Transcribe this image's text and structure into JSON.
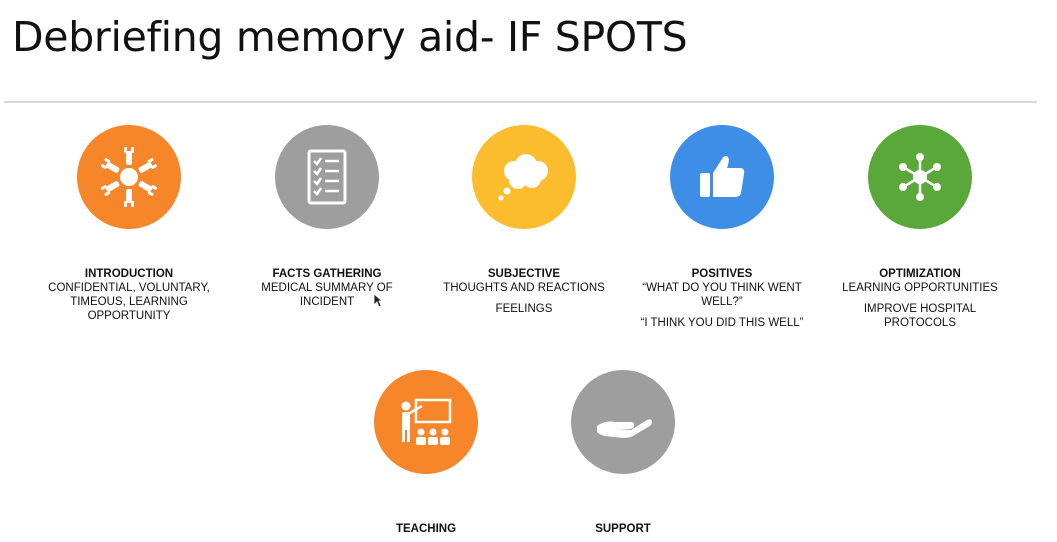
{
  "slide": {
    "title": "Debriefing memory aid- IF SPOTS"
  },
  "items": [
    {
      "heading": "INTRODUCTION",
      "lines": [
        "CONFIDENTIAL, VOLUNTARY,",
        "TIMEOUS, LEARNING",
        "OPPORTUNITY"
      ],
      "color": "#f68629",
      "icon": "hands-together-icon"
    },
    {
      "heading": "FACTS GATHERING",
      "lines": [
        "MEDICAL SUMMARY OF",
        "INCIDENT"
      ],
      "color": "#9e9e9e",
      "icon": "checklist-icon"
    },
    {
      "heading": "SUBJECTIVE",
      "lines": [
        "THOUGHTS AND REACTIONS"
      ],
      "lines2": [
        "FEELINGS"
      ],
      "color": "#fbbd2d",
      "icon": "thought-bubble-icon"
    },
    {
      "heading": "POSITIVES",
      "lines": [
        "“WHAT DO YOU THINK WENT",
        "WELL?”"
      ],
      "lines2": [
        "“I THINK YOU DID THIS WELL”"
      ],
      "color": "#3c8ee6",
      "icon": "thumbs-up-icon"
    },
    {
      "heading": "OPTIMIZATION",
      "lines": [
        "LEARNING OPPORTUNITIES"
      ],
      "lines2": [
        "IMPROVE HOSPITAL",
        "PROTOCOLS"
      ],
      "color": "#5aa83a",
      "icon": "network-hub-icon"
    },
    {
      "heading": "TEACHING",
      "color": "#f68629",
      "icon": "teacher-presentation-icon"
    },
    {
      "heading": "SUPPORT",
      "color": "#9e9e9e",
      "icon": "open-hand-icon"
    }
  ]
}
